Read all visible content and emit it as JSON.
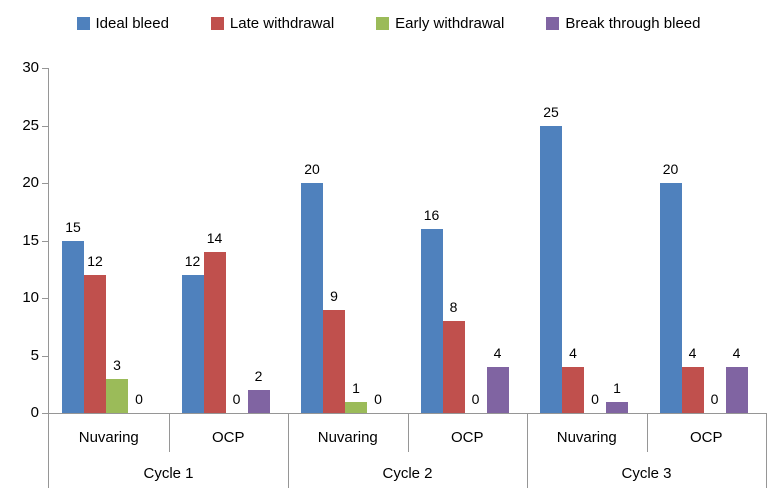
{
  "chart_data": {
    "type": "bar",
    "title": "",
    "xlabel": "",
    "ylabel": "",
    "ylim": [
      0,
      30
    ],
    "yticks": [
      0,
      5,
      10,
      15,
      20,
      25,
      30
    ],
    "grid": false,
    "legend_position": "top",
    "show_value_labels": true,
    "background": "#FFFFFF",
    "axis_color": "#969696",
    "text_color": "#000000",
    "series": [
      {
        "name": "Ideal bleed",
        "color": "#4F81BD"
      },
      {
        "name": "Late withdrawal",
        "color": "#C0504D"
      },
      {
        "name": "Early withdrawal",
        "color": "#9BBB59"
      },
      {
        "name": "Break through bleed",
        "color": "#8064A2"
      }
    ],
    "groups": [
      {
        "label": "Cycle 1",
        "subgroups": [
          {
            "label": "Nuvaring",
            "values": [
              15,
              12,
              3,
              0
            ]
          },
          {
            "label": "OCP",
            "values": [
              12,
              14,
              0,
              2
            ]
          }
        ]
      },
      {
        "label": "Cycle 2",
        "subgroups": [
          {
            "label": "Nuvaring",
            "values": [
              20,
              9,
              1,
              0
            ]
          },
          {
            "label": "OCP",
            "values": [
              16,
              8,
              0,
              4
            ]
          }
        ]
      },
      {
        "label": "Cycle 3",
        "subgroups": [
          {
            "label": "Nuvaring",
            "values": [
              25,
              4,
              0,
              1
            ]
          },
          {
            "label": "OCP",
            "values": [
              20,
              4,
              0,
              4
            ]
          }
        ]
      }
    ]
  }
}
